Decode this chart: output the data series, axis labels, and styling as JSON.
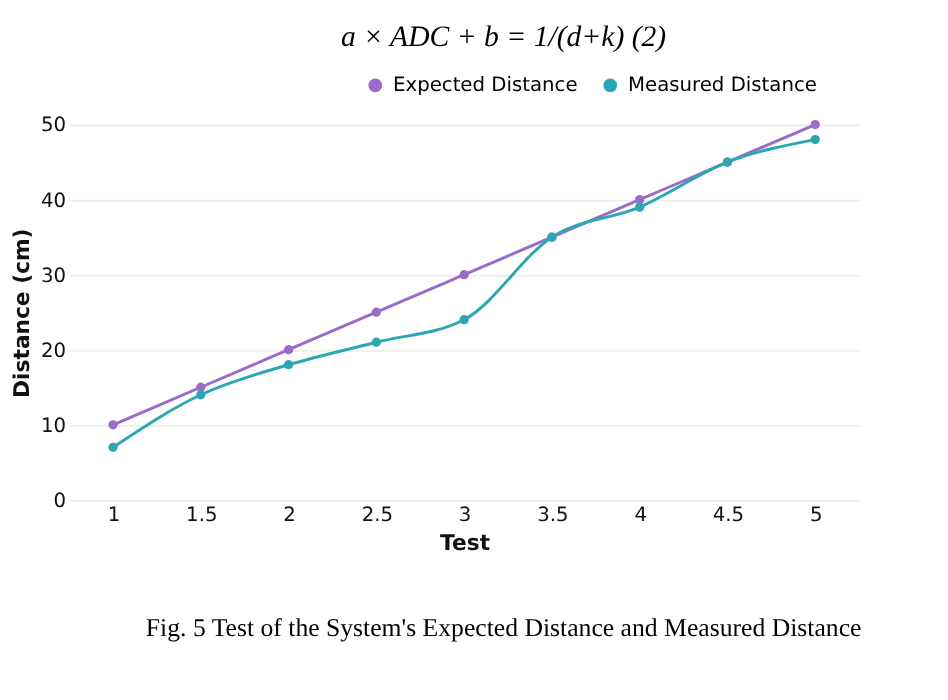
{
  "chart_data": {
    "type": "line",
    "xlabel": "Test",
    "ylabel": "Distance (cm)",
    "categories": [
      "1",
      "1.5",
      "2",
      "2.5",
      "3",
      "3.5",
      "4",
      "4.5",
      "5"
    ],
    "series": [
      {
        "name": "Expected Distance",
        "color": "#9a6cc8",
        "values": [
          10,
          15,
          20,
          25,
          30,
          35,
          40,
          45,
          50
        ]
      },
      {
        "name": "Measured Distance",
        "color": "#2ba6b3",
        "values": [
          7,
          14,
          18,
          21,
          24,
          35,
          39,
          45,
          48
        ]
      }
    ],
    "ylim": [
      0,
      50
    ],
    "yticks": [
      0,
      10,
      20,
      30,
      40,
      50
    ],
    "grid": "y",
    "legend": "top",
    "marker": "circle",
    "line_style": "solid",
    "annotations": [
      "a × ADC + b = 1/(d+k)     (2)",
      "Fig. 5 Test of the System's Expected Distance and Measured Distance"
    ]
  }
}
